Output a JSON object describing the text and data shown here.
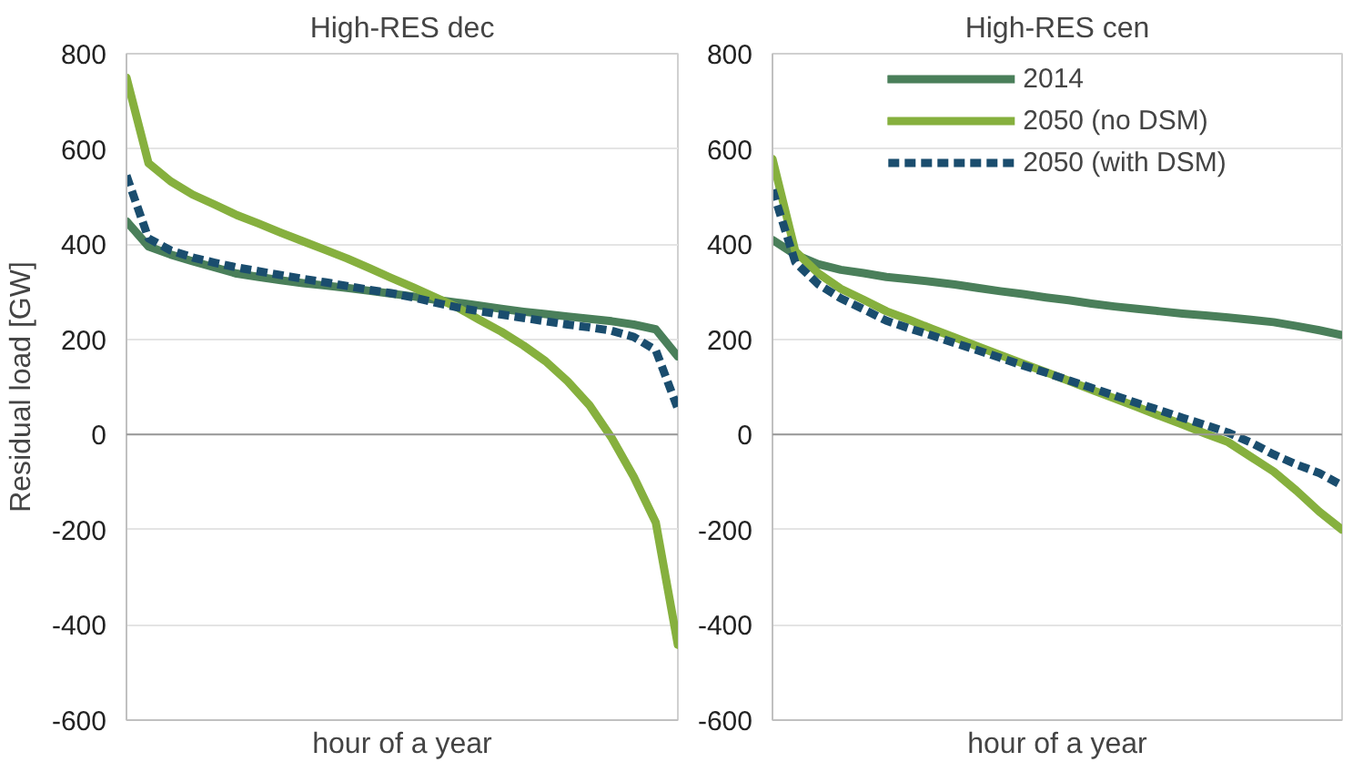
{
  "chart_data": [
    {
      "type": "line",
      "title": "High-RES dec",
      "xlabel": "hour of a year",
      "ylabel": "Residual load [GW]",
      "categories": [
        null,
        null,
        null,
        null,
        null,
        null,
        null,
        null,
        null,
        null,
        null,
        null,
        null,
        null,
        null,
        null,
        null,
        null,
        null,
        null,
        null,
        null,
        null,
        null,
        null,
        null
      ],
      "ylim": [
        -600,
        800
      ],
      "yticks": [
        -600,
        -400,
        -200,
        0,
        200,
        400,
        600,
        800
      ],
      "grid": "y",
      "ref_lines": [
        {
          "axis": "y",
          "value": 0,
          "color": "#999999"
        }
      ],
      "series": [
        {
          "color": "#4a7f5a",
          "line_style": "solid",
          "values": [
            448,
            395,
            378,
            364,
            351,
            338,
            331,
            324,
            318,
            313,
            308,
            302,
            296,
            290,
            283,
            277,
            271,
            264,
            258,
            253,
            248,
            243,
            238,
            231,
            221,
            164
          ]
        },
        {
          "color": "#86b03e",
          "line_style": "solid",
          "values": [
            750,
            570,
            532,
            504,
            483,
            461,
            443,
            424,
            406,
            388,
            370,
            350,
            329,
            309,
            288,
            267,
            241,
            216,
            187,
            154,
            112,
            61,
            -7,
            -89,
            -185,
            -442
          ]
        },
        {
          "color": "#1a4d6e",
          "line_style": "dashed",
          "values": [
            544,
            412,
            387,
            372,
            361,
            351,
            343,
            335,
            327,
            320,
            312,
            304,
            297,
            288,
            277,
            267,
            259,
            252,
            245,
            238,
            231,
            225,
            218,
            205,
            177,
            54
          ]
        }
      ]
    },
    {
      "type": "line",
      "title": "High-RES cen",
      "xlabel": "hour of a year",
      "categories": [
        null,
        null,
        null,
        null,
        null,
        null,
        null,
        null,
        null,
        null,
        null,
        null,
        null,
        null,
        null,
        null,
        null,
        null,
        null,
        null,
        null,
        null,
        null,
        null,
        null,
        null
      ],
      "ylim": [
        -600,
        800
      ],
      "yticks": [
        -600,
        -400,
        -200,
        0,
        200,
        400,
        600,
        800
      ],
      "grid": "y",
      "legend": "top",
      "ref_lines": [
        {
          "axis": "y",
          "value": 0,
          "color": "#999999"
        }
      ],
      "series": [
        {
          "name": "2014",
          "color": "#4a7f5a",
          "line_style": "solid",
          "values": [
            409,
            378,
            358,
            346,
            339,
            331,
            326,
            321,
            315,
            308,
            301,
            295,
            288,
            282,
            275,
            269,
            264,
            259,
            254,
            250,
            246,
            241,
            236,
            228,
            219,
            209
          ]
        },
        {
          "name": "2050 (no DSM)",
          "color": "#86b03e",
          "line_style": "solid",
          "values": [
            579,
            385,
            339,
            306,
            283,
            259,
            241,
            222,
            204,
            185,
            167,
            149,
            131,
            113,
            94,
            76,
            58,
            39,
            21,
            2,
            -16,
            -47,
            -78,
            -118,
            -162,
            -200
          ]
        },
        {
          "name": "2050 (with DSM)",
          "color": "#1a4d6e",
          "line_style": "dashed",
          "values": [
            514,
            362,
            316,
            286,
            263,
            239,
            223,
            208,
            192,
            177,
            161,
            145,
            130,
            114,
            98,
            82,
            66,
            51,
            35,
            20,
            4,
            -17,
            -42,
            -63,
            -81,
            -107
          ]
        }
      ]
    }
  ]
}
